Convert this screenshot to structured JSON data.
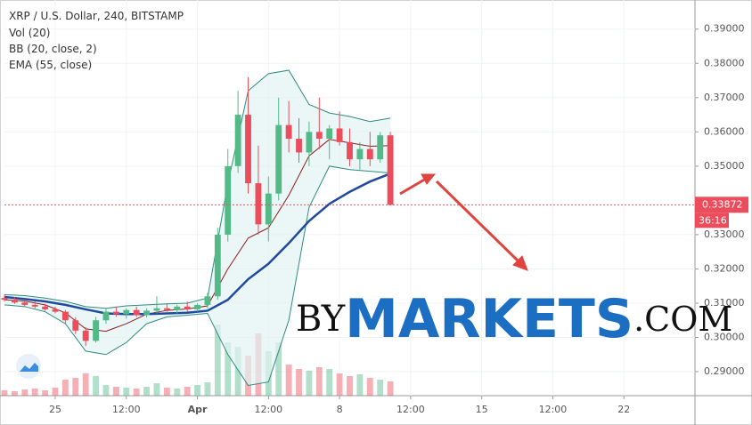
{
  "chart_data": {
    "type": "candlestick",
    "title": "XRP / U.S. Dollar, 240, BITSTAMP",
    "indicators": [
      "Vol (20)",
      "BB (20, close, 2)",
      "EMA (55, close)"
    ],
    "x": [
      0,
      3,
      6,
      9,
      12,
      15,
      18,
      21,
      24,
      27,
      30,
      33,
      36,
      39,
      42,
      45,
      48,
      51,
      54,
      57,
      60,
      63,
      66,
      69,
      72,
      75,
      78,
      81,
      84,
      87,
      90,
      93,
      96,
      99,
      102,
      105,
      108,
      111,
      114
    ],
    "open": [
      0.3115,
      0.311,
      0.3102,
      0.3095,
      0.309,
      0.3082,
      0.3075,
      0.305,
      0.302,
      0.299,
      0.305,
      0.3075,
      0.3068,
      0.308,
      0.3065,
      0.3078,
      0.3085,
      0.308,
      0.309,
      0.3082,
      0.3095,
      0.312,
      0.33,
      0.35,
      0.365,
      0.345,
      0.333,
      0.342,
      0.362,
      0.358,
      0.354,
      0.36,
      0.358,
      0.361,
      0.357,
      0.352,
      0.355,
      0.352,
      0.359
    ],
    "high": [
      0.3125,
      0.3118,
      0.311,
      0.3105,
      0.3098,
      0.309,
      0.308,
      0.3058,
      0.303,
      0.306,
      0.3085,
      0.309,
      0.3085,
      0.309,
      0.3085,
      0.312,
      0.31,
      0.3095,
      0.3105,
      0.31,
      0.313,
      0.332,
      0.355,
      0.372,
      0.376,
      0.356,
      0.347,
      0.37,
      0.369,
      0.364,
      0.363,
      0.37,
      0.362,
      0.366,
      0.361,
      0.357,
      0.36,
      0.36,
      0.36
    ],
    "low": [
      0.3105,
      0.3098,
      0.309,
      0.3085,
      0.3078,
      0.307,
      0.304,
      0.301,
      0.2975,
      0.2985,
      0.304,
      0.306,
      0.3055,
      0.306,
      0.3058,
      0.307,
      0.3075,
      0.307,
      0.3075,
      0.3076,
      0.3085,
      0.311,
      0.328,
      0.348,
      0.342,
      0.33,
      0.328,
      0.34,
      0.354,
      0.351,
      0.35,
      0.355,
      0.352,
      0.356,
      0.35,
      0.349,
      0.35,
      0.351,
      0.3387
    ],
    "close": [
      0.311,
      0.3102,
      0.3095,
      0.309,
      0.3082,
      0.3075,
      0.305,
      0.302,
      0.299,
      0.305,
      0.3075,
      0.3068,
      0.308,
      0.3065,
      0.3078,
      0.3085,
      0.308,
      0.309,
      0.3082,
      0.3095,
      0.312,
      0.33,
      0.35,
      0.365,
      0.345,
      0.333,
      0.342,
      0.362,
      0.358,
      0.354,
      0.36,
      0.358,
      0.361,
      0.357,
      0.352,
      0.355,
      0.352,
      0.359,
      0.3387
    ],
    "volume": [
      6,
      5,
      7,
      8,
      6,
      9,
      18,
      20,
      25,
      22,
      12,
      10,
      9,
      8,
      10,
      14,
      9,
      8,
      10,
      12,
      15,
      80,
      60,
      55,
      45,
      70,
      50,
      60,
      35,
      30,
      28,
      32,
      30,
      25,
      22,
      24,
      20,
      18,
      16
    ],
    "vlim": [
      0,
      100
    ],
    "bb_x": [
      0,
      6,
      12,
      18,
      24,
      30,
      36,
      42,
      48,
      54,
      60,
      66,
      72,
      78,
      84,
      90,
      96,
      102,
      108,
      114
    ],
    "bb_upper": [
      0.3125,
      0.3122,
      0.3115,
      0.3105,
      0.309,
      0.3085,
      0.3092,
      0.3095,
      0.3098,
      0.31,
      0.3115,
      0.345,
      0.372,
      0.377,
      0.378,
      0.368,
      0.3655,
      0.3645,
      0.363,
      0.364
    ],
    "bb_lower": [
      0.3095,
      0.309,
      0.3075,
      0.304,
      0.296,
      0.295,
      0.2985,
      0.304,
      0.306,
      0.3065,
      0.307,
      0.295,
      0.286,
      0.287,
      0.305,
      0.338,
      0.35,
      0.349,
      0.3485,
      0.348
    ],
    "bb_basis": [
      0.311,
      0.3106,
      0.3095,
      0.3072,
      0.3025,
      0.3018,
      0.304,
      0.3068,
      0.3079,
      0.3083,
      0.3092,
      0.32,
      0.329,
      0.332,
      0.3415,
      0.353,
      0.3578,
      0.3568,
      0.3558,
      0.356
    ],
    "ema": [
      0.3118,
      0.3112,
      0.3105,
      0.3095,
      0.3082,
      0.307,
      0.3068,
      0.3068,
      0.307,
      0.3072,
      0.3078,
      0.311,
      0.317,
      0.3215,
      0.3275,
      0.334,
      0.339,
      0.3425,
      0.3455,
      0.3478
    ],
    "up_color": "#53b987",
    "down_color": "#eb4d5c",
    "band_color": "#2e8b80",
    "basis_color": "#8b1c1c",
    "ema_color": "#1f4aa0",
    "band_fill": "#e3f2f2",
    "last_price": 0.33872,
    "countdown": "36:16",
    "xlim": [
      0,
      204
    ],
    "xticks": [
      {
        "value": 15,
        "label": "25"
      },
      {
        "value": 36,
        "label": "12:00"
      },
      {
        "value": 57,
        "label": "Apr"
      },
      {
        "value": 78,
        "label": "12:00"
      },
      {
        "value": 99,
        "label": "8"
      },
      {
        "value": 120,
        "label": "12:00"
      },
      {
        "value": 141,
        "label": "15"
      },
      {
        "value": 162,
        "label": "12:00"
      },
      {
        "value": 183,
        "label": "22"
      }
    ],
    "ylim": [
      0.283,
      0.3985
    ],
    "yticks": [
      {
        "value": 0.39,
        "label": "0.39000"
      },
      {
        "value": 0.38,
        "label": "0.38000"
      },
      {
        "value": 0.37,
        "label": "0.37000"
      },
      {
        "value": 0.36,
        "label": "0.36000"
      },
      {
        "value": 0.35,
        "label": "0.35000"
      },
      {
        "value": 0.33,
        "label": "0.33000"
      },
      {
        "value": 0.32,
        "label": "0.32000"
      },
      {
        "value": 0.31,
        "label": "0.31000"
      },
      {
        "value": 0.3,
        "label": "0.30000"
      },
      {
        "value": 0.29,
        "label": "0.29000"
      }
    ],
    "watermark": {
      "prefix": "BY",
      "main": "MARKETS",
      "suffix": ".COM"
    }
  }
}
